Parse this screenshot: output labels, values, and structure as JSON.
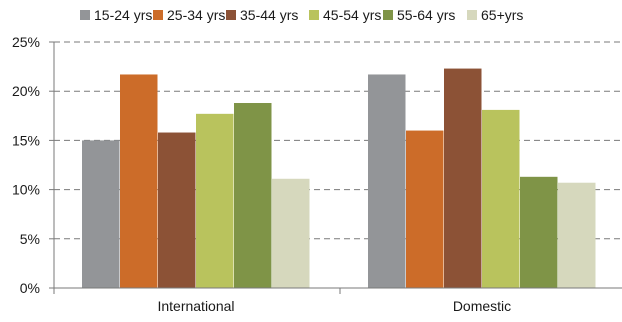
{
  "chart_data": {
    "type": "bar",
    "title": "",
    "xlabel": "",
    "ylabel": "",
    "categories": [
      "International",
      "Domestic"
    ],
    "series": [
      {
        "name": "15-24 yrs",
        "color": "#939598",
        "values": [
          15.0,
          21.7
        ]
      },
      {
        "name": "25-34 yrs",
        "color": "#cc6c29",
        "values": [
          21.7,
          16.0
        ]
      },
      {
        "name": "35-44 yrs",
        "color": "#8c5236",
        "values": [
          15.8,
          22.3
        ]
      },
      {
        "name": "45-54 yrs",
        "color": "#b9c35d",
        "values": [
          17.7,
          18.1
        ]
      },
      {
        "name": "55-64 yrs",
        "color": "#7f9447",
        "values": [
          18.8,
          11.3
        ]
      },
      {
        "name": "65+yrs",
        "color": "#d6d8bd",
        "values": [
          11.1,
          10.7
        ]
      }
    ],
    "ylim": [
      0,
      25
    ],
    "yticks": [
      0,
      5,
      10,
      15,
      20,
      25
    ],
    "ytick_labels": [
      "0%",
      "5%",
      "10%",
      "15%",
      "20%",
      "25%"
    ],
    "grid": "horizontal dashed",
    "legend_position": "top"
  }
}
